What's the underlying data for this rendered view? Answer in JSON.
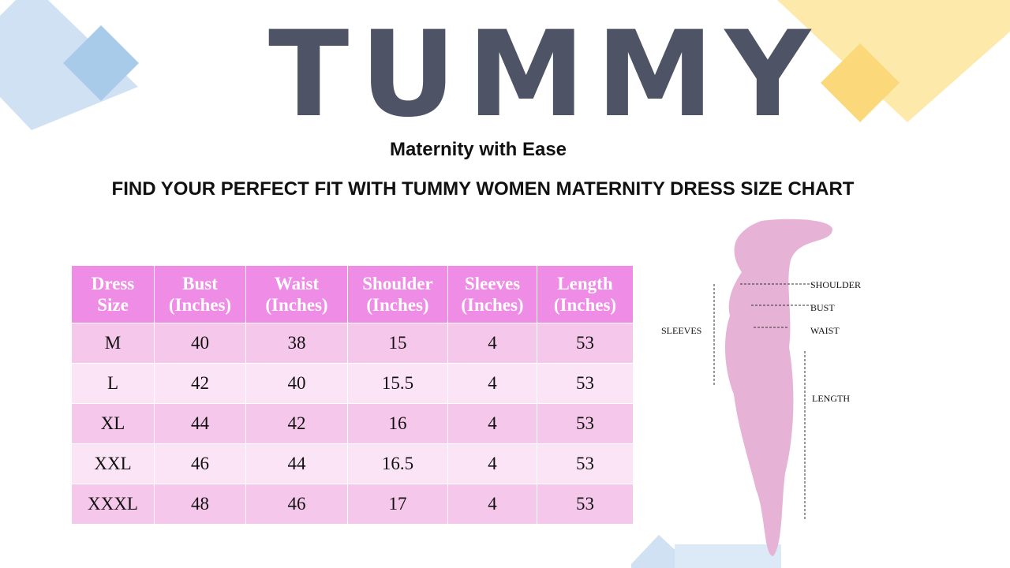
{
  "header": {
    "brand": "TUMMY",
    "tagline": "Maternity with Ease",
    "title": "FIND YOUR PERFECT FIT WITH TUMMY WOMEN MATERNITY DRESS SIZE CHART"
  },
  "table": {
    "columns": [
      "Dress Size",
      "Bust (Inches)",
      "Waist (Inches)",
      "Shoulder (Inches)",
      "Sleeves (Inches)",
      "Length (Inches)"
    ],
    "rows": [
      [
        "M",
        40,
        38,
        15,
        4,
        53
      ],
      [
        "L",
        42,
        40,
        15.5,
        4,
        53
      ],
      [
        "XL",
        44,
        42,
        16,
        4,
        53
      ],
      [
        "XXL",
        46,
        44,
        16.5,
        4,
        53
      ],
      [
        "XXXL",
        48,
        46,
        17,
        4,
        53
      ]
    ]
  },
  "figure": {
    "labels": {
      "shoulder": "SHOULDER",
      "bust": "BUST",
      "waist": "WAIST",
      "sleeves": "SLEEVES",
      "length": "LENGTH"
    }
  }
}
